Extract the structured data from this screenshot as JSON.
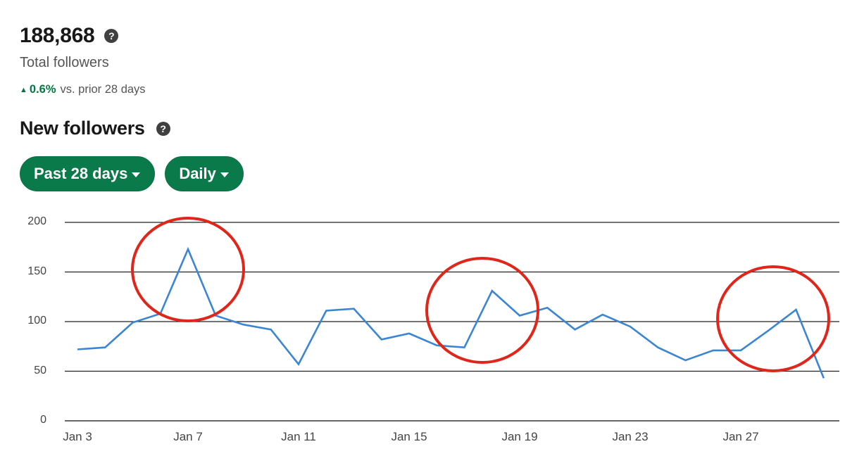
{
  "total": {
    "value": "188,868",
    "label": "Total followers",
    "change_arrow": "▲",
    "change_pct": "0.6%",
    "change_text": "vs. prior 28 days",
    "help_icon": "question-circle-icon"
  },
  "new_followers": {
    "title": "New followers",
    "help_icon": "question-circle-icon",
    "filters": [
      {
        "label": "Past 28 days",
        "icon": "caret-down-icon"
      },
      {
        "label": "Daily",
        "icon": "caret-down-icon"
      }
    ]
  },
  "colors": {
    "accent_green": "#0a7a4b",
    "positive_text": "#057642",
    "line": "#3b86d4",
    "annotation": "#e0261b"
  },
  "chart_data": {
    "type": "line",
    "title": "New followers",
    "xlabel": "",
    "ylabel": "",
    "ylim": [
      0,
      200
    ],
    "yticks": [
      0,
      50,
      100,
      150,
      200
    ],
    "xtick_labels": [
      "Jan 3",
      "Jan 7",
      "Jan 11",
      "Jan 15",
      "Jan 19",
      "Jan 23",
      "Jan 27"
    ],
    "grid": true,
    "legend": null,
    "x": [
      "Jan 3",
      "Jan 4",
      "Jan 5",
      "Jan 6",
      "Jan 7",
      "Jan 8",
      "Jan 9",
      "Jan 10",
      "Jan 11",
      "Jan 12",
      "Jan 13",
      "Jan 14",
      "Jan 15",
      "Jan 16",
      "Jan 17",
      "Jan 18",
      "Jan 19",
      "Jan 20",
      "Jan 21",
      "Jan 22",
      "Jan 23",
      "Jan 24",
      "Jan 25",
      "Jan 26",
      "Jan 27",
      "Jan 28",
      "Jan 29",
      "Jan 30"
    ],
    "series": [
      {
        "name": "New followers",
        "values": [
          72,
          74,
          99,
          108,
          173,
          106,
          97,
          92,
          57,
          111,
          113,
          82,
          88,
          76,
          74,
          131,
          106,
          114,
          92,
          107,
          95,
          74,
          61,
          71,
          71,
          91,
          112,
          43
        ]
      }
    ],
    "annotations": [
      {
        "type": "circle",
        "around": "Jan 7",
        "color": "#e0261b"
      },
      {
        "type": "circle",
        "around": "Jan 18",
        "color": "#e0261b"
      },
      {
        "type": "circle",
        "around": "Jan 29",
        "color": "#e0261b"
      }
    ]
  }
}
